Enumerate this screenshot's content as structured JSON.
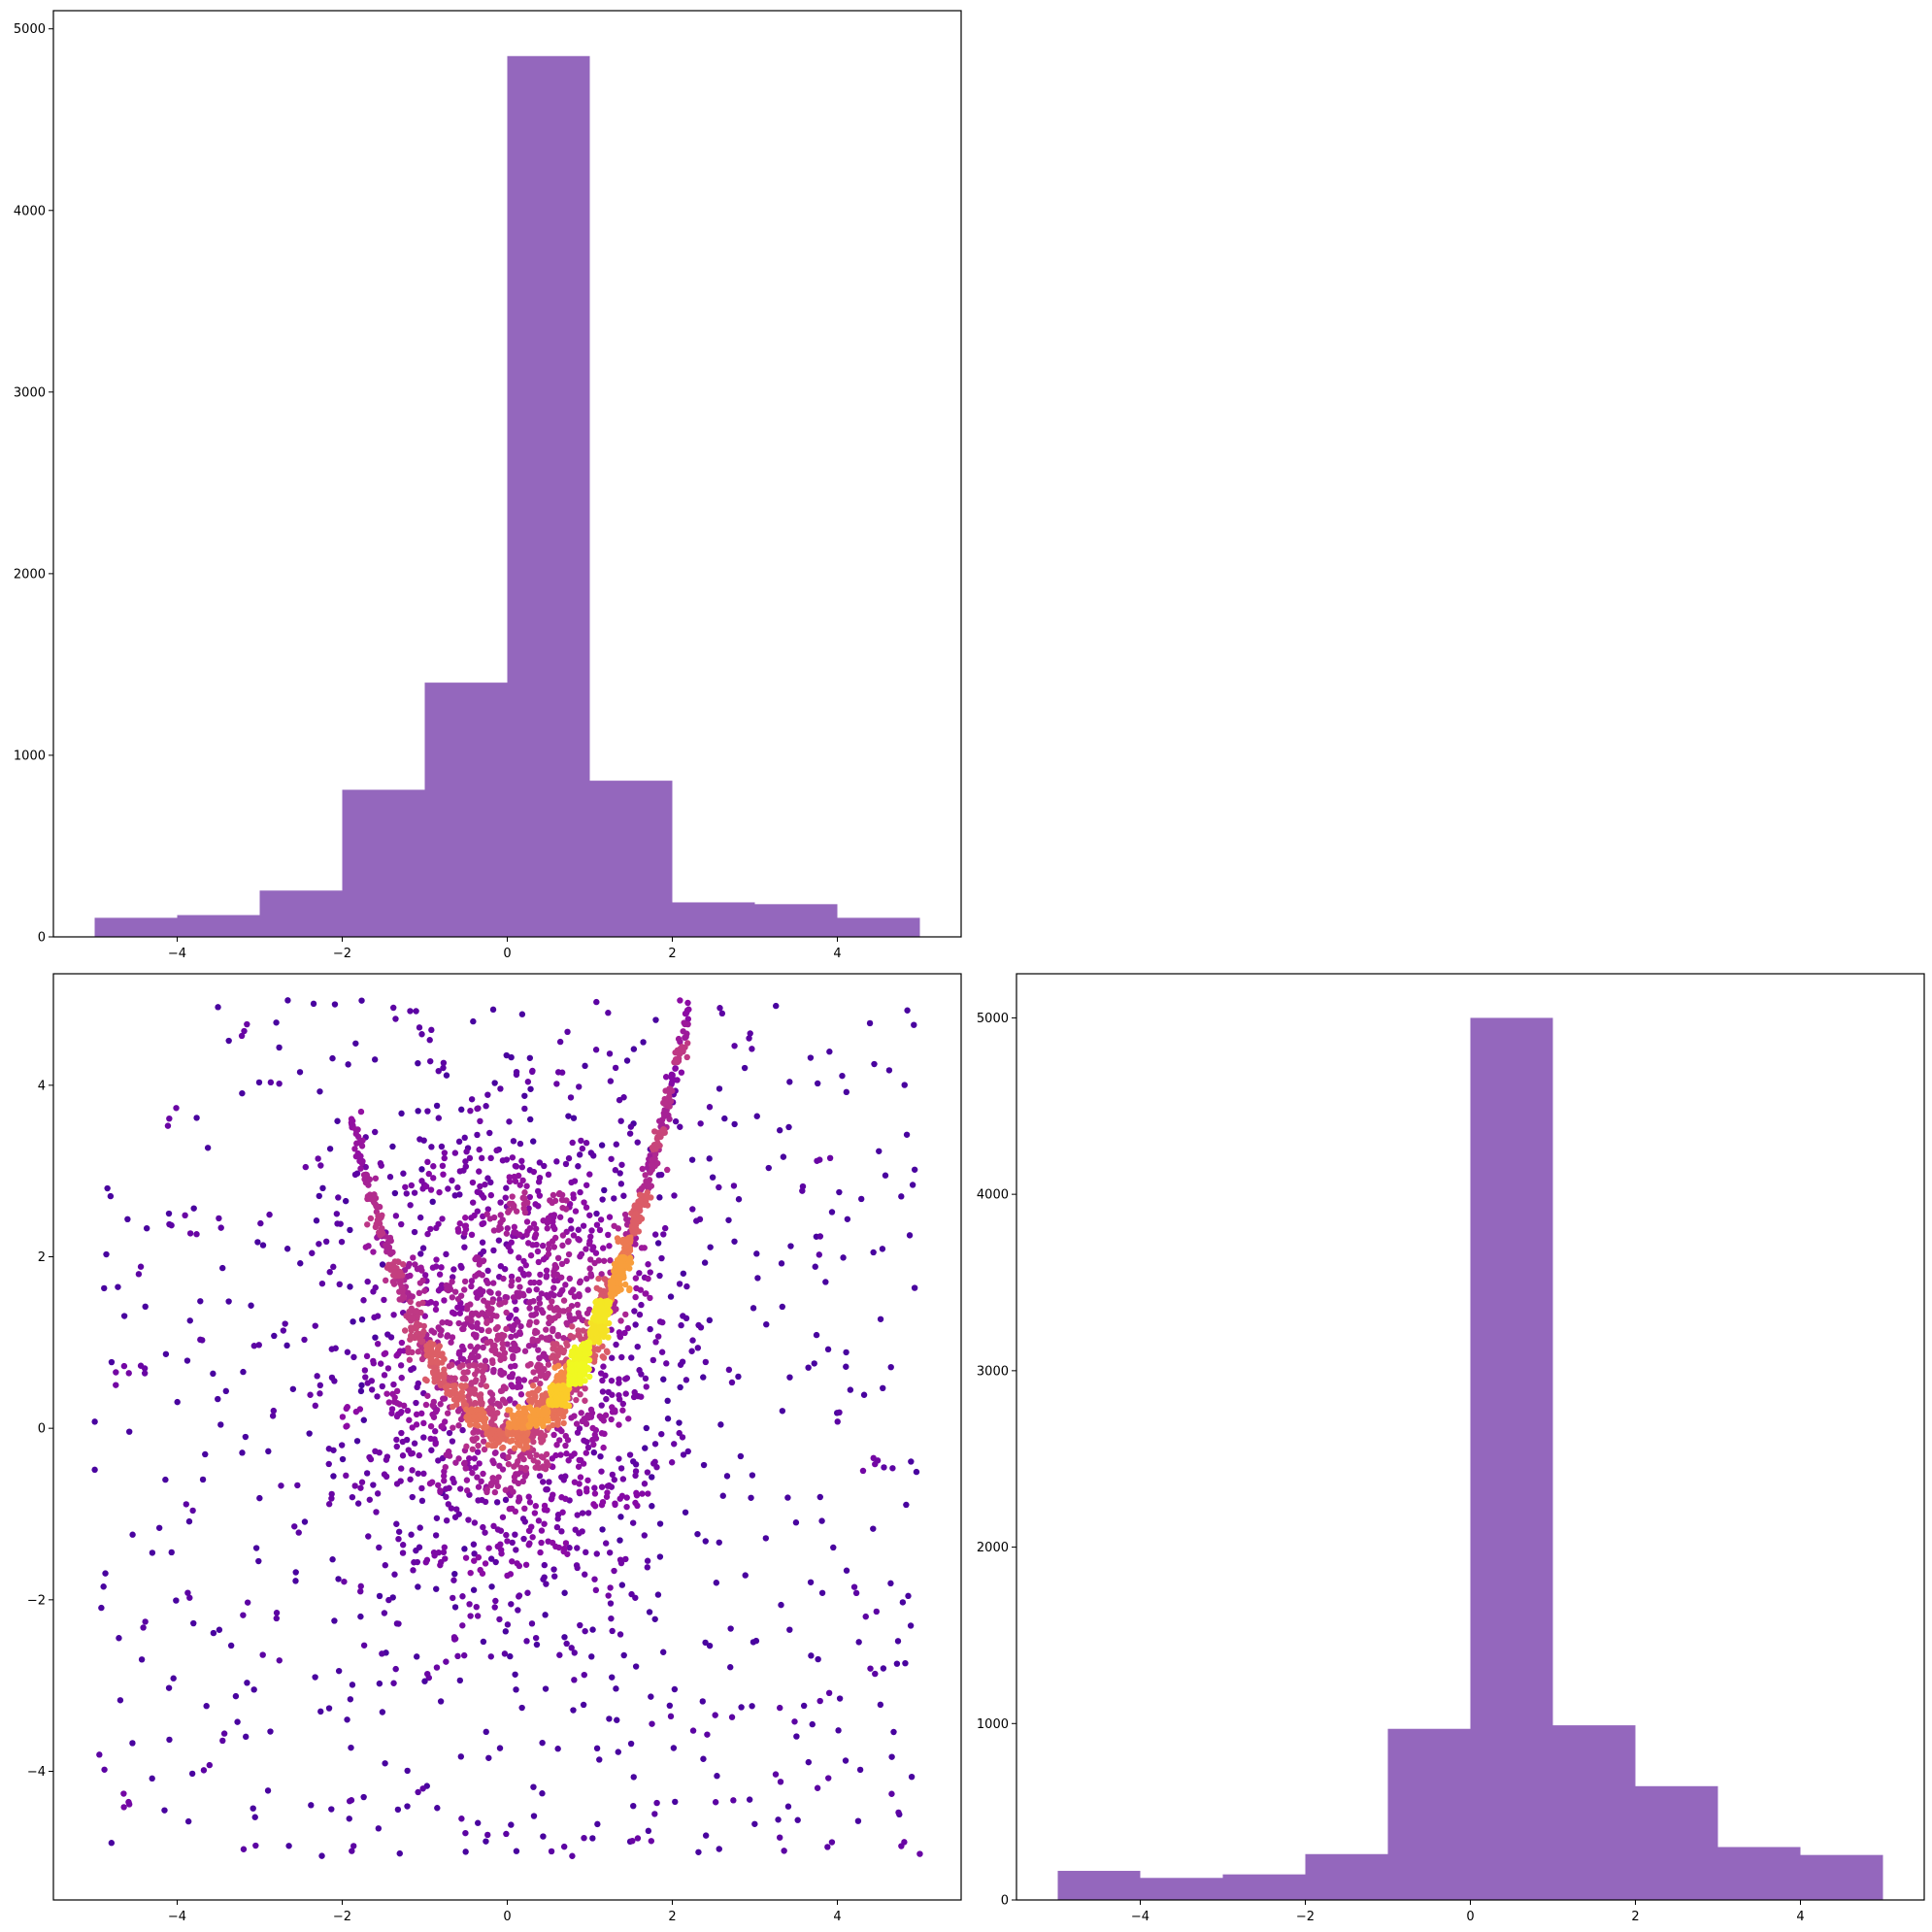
{
  "chart_data": [
    {
      "id": "hist_x",
      "type": "bar",
      "subtype": "histogram",
      "bin_edges": [
        -5,
        -4,
        -3,
        -2,
        -1,
        0,
        1,
        2,
        3,
        4,
        5
      ],
      "values": [
        105,
        120,
        255,
        810,
        1400,
        4850,
        860,
        190,
        180,
        105
      ],
      "color": "#9467bd",
      "xlim": [
        -5.5,
        5.5
      ],
      "ylim": [
        0,
        5100
      ],
      "xticks": [
        -4,
        -2,
        0,
        2,
        4
      ],
      "xtick_labels": [
        "−4",
        "−2",
        "0",
        "2",
        "4"
      ],
      "yticks": [
        0,
        1000,
        2000,
        3000,
        4000,
        5000
      ],
      "ytick_labels": [
        "0",
        "1000",
        "2000",
        "3000",
        "4000",
        "5000"
      ],
      "grid": false
    },
    {
      "id": "hist_y",
      "type": "bar",
      "subtype": "histogram",
      "bin_edges": [
        -5,
        -4,
        -3,
        -2,
        -1,
        0,
        1,
        2,
        3,
        4,
        5
      ],
      "values": [
        165,
        125,
        145,
        260,
        970,
        5000,
        990,
        645,
        300,
        255
      ],
      "color": "#9467bd",
      "xlim": [
        -5.5,
        5.5
      ],
      "ylim": [
        0,
        5250
      ],
      "xticks": [
        -4,
        -2,
        0,
        2,
        4
      ],
      "xtick_labels": [
        "−4",
        "−2",
        "0",
        "2",
        "4"
      ],
      "yticks": [
        0,
        1000,
        2000,
        3000,
        4000,
        5000
      ],
      "ytick_labels": [
        "0",
        "1000",
        "2000",
        "3000",
        "4000",
        "5000"
      ],
      "grid": false
    },
    {
      "id": "scatter_xy",
      "type": "scatter",
      "description_of_distribution": {
        "uniform_background": {
          "count": 700,
          "x_range": [
            -5,
            5
          ],
          "y_range": [
            -5,
            5
          ]
        },
        "gaussian_cloud": {
          "count": 1700,
          "x_mean": 0.1,
          "x_std": 0.9,
          "y_mean": 0.8,
          "y_std": 1.4
        },
        "curve_y_equals_x_squared": {
          "count": 1500,
          "x_range": [
            -1.9,
            2.2
          ],
          "densest_near_x": 1.0
        }
      },
      "colormap": "plasma",
      "color_encodes": "point density",
      "xlim": [
        -5.5,
        5.5
      ],
      "ylim": [
        -5.5,
        5.3
      ],
      "xticks": [
        -4,
        -2,
        0,
        2,
        4
      ],
      "xtick_labels": [
        "−4",
        "−2",
        "0",
        "2",
        "4"
      ],
      "yticks": [
        -4,
        -2,
        0,
        2,
        4
      ],
      "ytick_labels": [
        "−4",
        "−2",
        "0",
        "2",
        "4"
      ],
      "grid": false
    }
  ]
}
